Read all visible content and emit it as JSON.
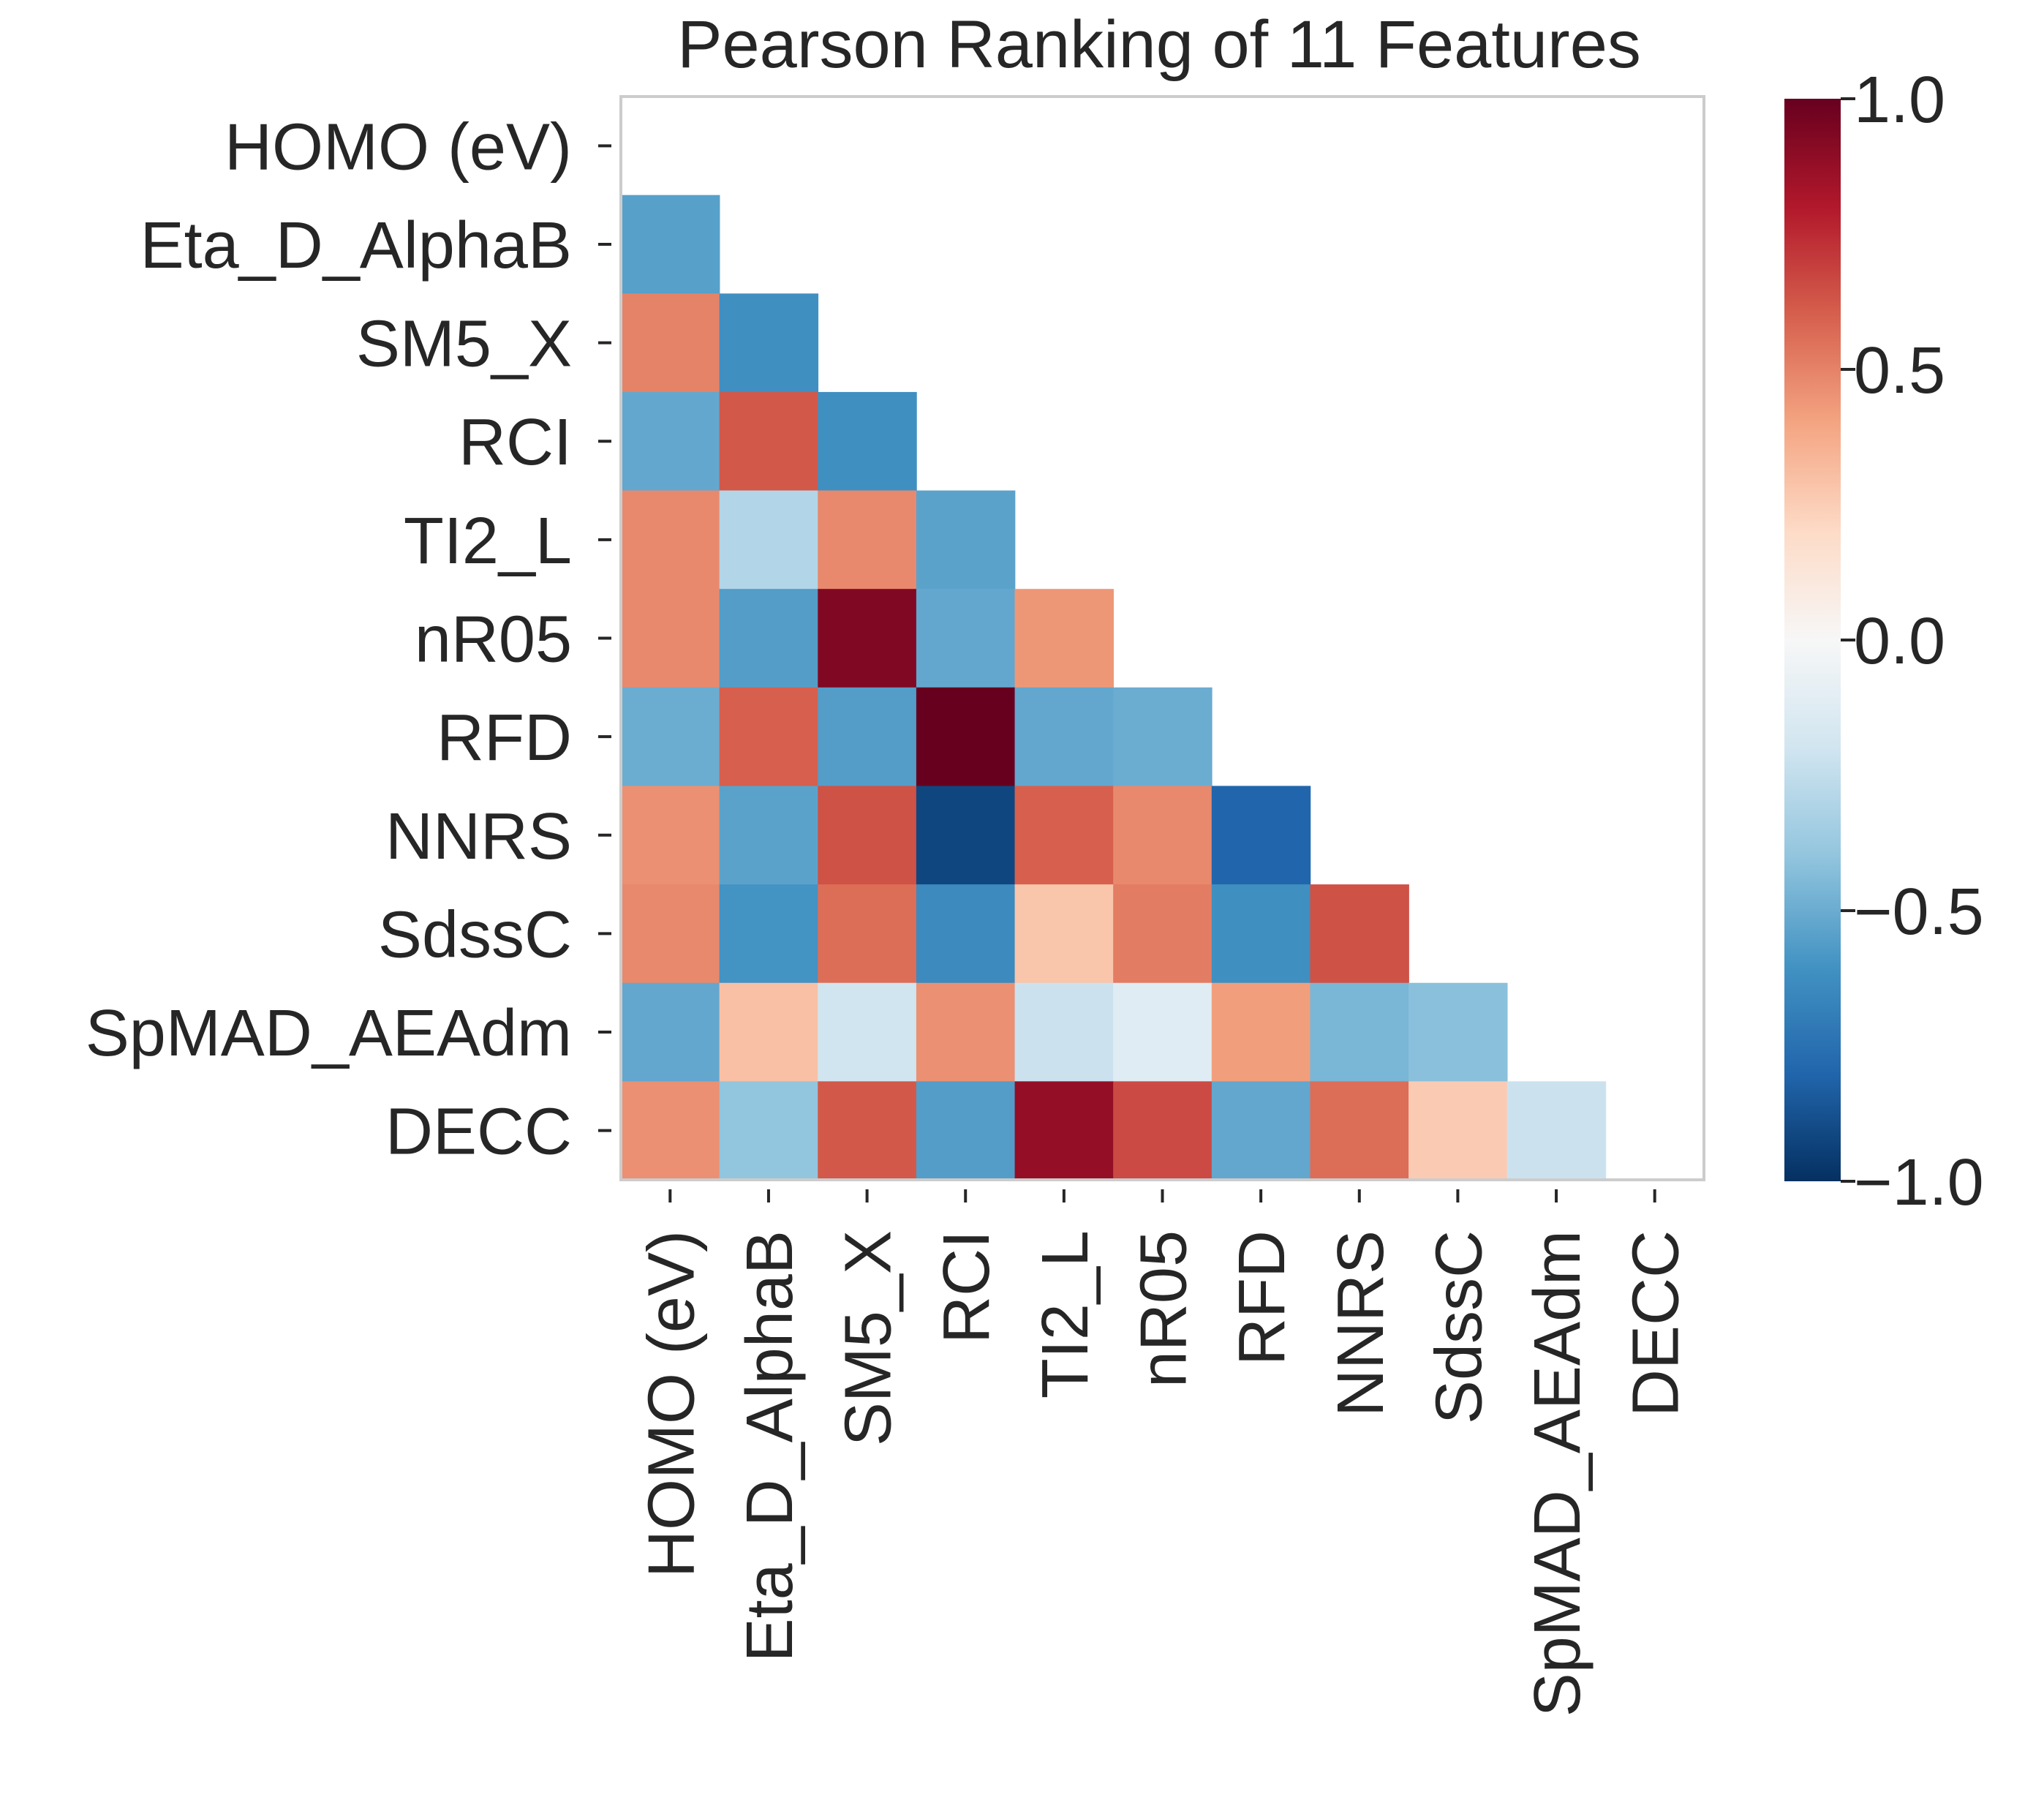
{
  "chart_data": {
    "type": "heatmap",
    "title": "Pearson Ranking of 11 Features",
    "xlabel": "",
    "ylabel": "",
    "mask": "upper-triangle-including-diagonal",
    "labels": [
      "HOMO (eV)",
      "Eta_D_AlphaB",
      "SM5_X",
      "RCI",
      "TI2_L",
      "nR05",
      "RFD",
      "NNRS",
      "SdssC",
      "SpMAD_AEAdm",
      "DECC"
    ],
    "matrix": [
      [
        null,
        null,
        null,
        null,
        null,
        null,
        null,
        null,
        null,
        null,
        null
      ],
      [
        -0.55,
        null,
        null,
        null,
        null,
        null,
        null,
        null,
        null,
        null,
        null
      ],
      [
        0.5,
        -0.62,
        null,
        null,
        null,
        null,
        null,
        null,
        null,
        null,
        null
      ],
      [
        -0.52,
        0.62,
        -0.62,
        null,
        null,
        null,
        null,
        null,
        null,
        null,
        null
      ],
      [
        0.48,
        -0.3,
        0.48,
        -0.54,
        null,
        null,
        null,
        null,
        null,
        null,
        null
      ],
      [
        0.48,
        -0.56,
        0.93,
        -0.52,
        0.44,
        null,
        null,
        null,
        null,
        null,
        null
      ],
      [
        -0.5,
        0.6,
        -0.56,
        1.0,
        -0.52,
        -0.5,
        null,
        null,
        null,
        null,
        null
      ],
      [
        0.46,
        -0.54,
        0.64,
        -0.92,
        0.6,
        0.48,
        -0.8,
        null,
        null,
        null,
        null
      ],
      [
        0.48,
        -0.6,
        0.56,
        -0.64,
        0.28,
        0.52,
        -0.62,
        0.64,
        null,
        null,
        null
      ],
      [
        -0.52,
        0.3,
        -0.2,
        0.46,
        -0.22,
        -0.12,
        0.42,
        -0.46,
        -0.42,
        null,
        null
      ],
      [
        0.46,
        -0.4,
        0.62,
        -0.56,
        0.88,
        0.66,
        -0.52,
        0.56,
        0.26,
        -0.22,
        null
      ]
    ],
    "colorbar": {
      "min": -1.0,
      "max": 1.0,
      "ticks": [
        "1.0",
        "0.5",
        "0.0",
        "−0.5",
        "−1.0"
      ],
      "tick_values": [
        1.0,
        0.5,
        0.0,
        -0.5,
        -1.0
      ],
      "colormap": "RdBu_r"
    },
    "grid": false,
    "legend": "colorbar-right"
  }
}
